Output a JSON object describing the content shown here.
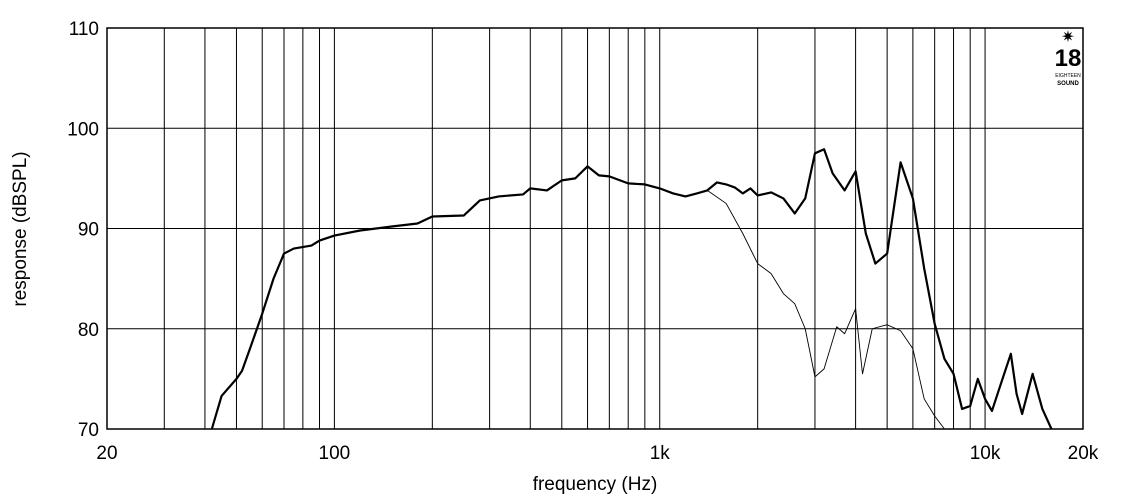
{
  "chart_data": {
    "type": "line",
    "x_label": "frequency (Hz)",
    "y_label": "response (dBSPL)",
    "xscale": "log",
    "xlim": [
      20,
      20000
    ],
    "ylim": [
      70,
      110
    ],
    "xticks": [
      20,
      100,
      {
        "value": 1000,
        "label": "1k"
      },
      {
        "value": 10000,
        "label": "10k"
      },
      {
        "value": 20000,
        "label": "20k"
      }
    ],
    "xminor": [
      30,
      40,
      50,
      60,
      70,
      80,
      90,
      200,
      300,
      400,
      500,
      600,
      700,
      800,
      900,
      2000,
      3000,
      4000,
      5000,
      6000,
      7000,
      8000,
      9000
    ],
    "yticks": [
      70,
      80,
      90,
      100,
      110
    ],
    "grid": true,
    "logo_text": [
      "18",
      "EIGHTEEN",
      "SOUND"
    ],
    "series": [
      {
        "color": "#000000",
        "line_width": 2.2,
        "x": [
          42,
          45,
          50,
          52,
          55,
          60,
          65,
          70,
          75,
          85,
          90,
          100,
          120,
          150,
          180,
          200,
          250,
          280,
          320,
          380,
          400,
          450,
          500,
          550,
          600,
          650,
          700,
          800,
          900,
          1000,
          1100,
          1200,
          1300,
          1400,
          1500,
          1600,
          1700,
          1800,
          1900,
          2000,
          2200,
          2400,
          2600,
          2800,
          3000,
          3200,
          3400,
          3700,
          4000,
          4300,
          4600,
          5000,
          5500,
          6000,
          6500,
          7000,
          7500,
          8000,
          8500,
          9000,
          9500,
          10000,
          10500,
          11000,
          12000,
          12500,
          13000,
          14000,
          15000,
          16000
        ],
        "values": [
          70,
          73.3,
          75,
          75.8,
          78,
          81.5,
          85,
          87.5,
          88,
          88.3,
          88.8,
          89.3,
          89.8,
          90.2,
          90.5,
          91.2,
          91.3,
          92.8,
          93.2,
          93.4,
          94,
          93.8,
          94.8,
          95,
          96.2,
          95.3,
          95.2,
          94.5,
          94.4,
          94,
          93.5,
          93.2,
          93.5,
          93.8,
          94.6,
          94.4,
          94.1,
          93.5,
          94,
          93.3,
          93.6,
          93,
          91.5,
          93,
          97.5,
          97.9,
          95.5,
          93.8,
          95.7,
          89.5,
          86.5,
          87.5,
          96.6,
          93,
          86,
          80.5,
          77,
          75.5,
          72,
          72.3,
          75,
          73,
          71.8,
          73.8,
          77.5,
          73.5,
          71.5,
          75.5,
          72,
          70
        ]
      },
      {
        "color": "#000000",
        "line_width": 0.9,
        "x": [
          1400,
          1600,
          1800,
          2000,
          2200,
          2400,
          2600,
          2800,
          3000,
          3200,
          3500,
          3700,
          4000,
          4200,
          4500,
          5000,
          5500,
          6000,
          6500,
          7000,
          7500
        ],
        "values": [
          93.8,
          92.5,
          89.5,
          86.5,
          85.5,
          83.5,
          82.5,
          80,
          75.2,
          76,
          80.2,
          79.5,
          82,
          75.5,
          80,
          80.4,
          79.8,
          78,
          73,
          71.3,
          70
        ]
      }
    ]
  }
}
